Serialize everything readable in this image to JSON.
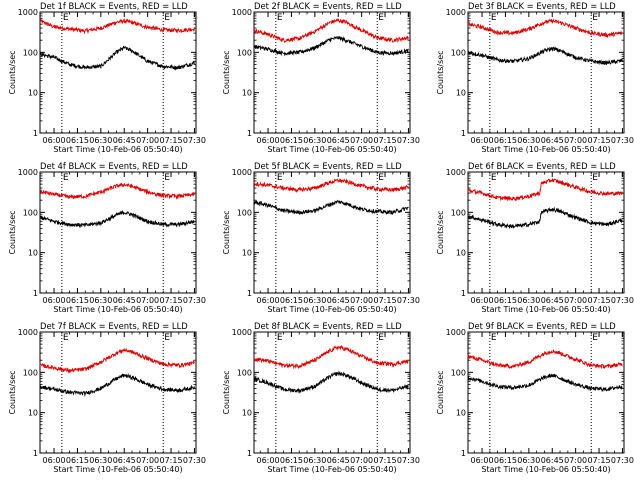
{
  "figure": {
    "ylabel": "Counts/sec",
    "xlabel": "Start Time (10-Feb-06 05:50:40)",
    "marker_labels": [
      "E",
      "E"
    ]
  },
  "colors": {
    "events": "#000000",
    "lld": "#dd0000",
    "axis": "#000000"
  },
  "chart_data": [
    {
      "type": "line",
      "title": "Det 1f BLACK = Events, RED = LLD",
      "xlabel": "Start Time (10-Feb-06 05:50:40)",
      "ylabel": "Counts/sec",
      "x": [
        "05:51",
        "06:00",
        "06:10",
        "06:20",
        "06:30",
        "06:40",
        "06:45",
        "06:50",
        "07:00",
        "07:10",
        "07:20",
        "07:30"
      ],
      "xtick_labels": [
        "06:00",
        "06:15",
        "06:30",
        "06:45",
        "07:00",
        "07:15",
        "07:30"
      ],
      "yscale": "log",
      "ylim": [
        1,
        1000
      ],
      "ytick_labels": [
        "1",
        "10",
        "100",
        "1000"
      ],
      "markers": [
        "06:05",
        "07:10"
      ],
      "series": [
        {
          "color": "red",
          "values": [
            600,
            430,
            380,
            340,
            400,
            560,
            600,
            550,
            420,
            360,
            350,
            380
          ]
        },
        {
          "color": "black",
          "values": [
            90,
            75,
            50,
            42,
            45,
            100,
            130,
            110,
            60,
            45,
            42,
            55
          ]
        }
      ]
    },
    {
      "type": "line",
      "title": "Det 2f BLACK = Events, RED = LLD",
      "xlabel": "Start Time (10-Feb-06 05:50:40)",
      "ylabel": "Counts/sec",
      "x": [
        "05:51",
        "06:00",
        "06:10",
        "06:20",
        "06:30",
        "06:40",
        "06:45",
        "06:50",
        "07:00",
        "07:10",
        "07:20",
        "07:30"
      ],
      "xtick_labels": [
        "06:00",
        "06:15",
        "06:30",
        "06:45",
        "07:00",
        "07:15",
        "07:30"
      ],
      "yscale": "log",
      "ylim": [
        1,
        1000
      ],
      "ytick_labels": [
        "1",
        "10",
        "100",
        "1000"
      ],
      "markers": [
        "06:05",
        "07:10"
      ],
      "series": [
        {
          "color": "red",
          "values": [
            350,
            280,
            200,
            220,
            330,
            560,
            620,
            560,
            350,
            230,
            200,
            230
          ]
        },
        {
          "color": "black",
          "values": [
            140,
            120,
            95,
            100,
            130,
            210,
            230,
            200,
            140,
            100,
            95,
            110
          ]
        }
      ]
    },
    {
      "type": "line",
      "title": "Det 3f BLACK = Events, RED = LLD",
      "xlabel": "Start Time (10-Feb-06 05:50:40)",
      "ylabel": "Counts/sec",
      "x": [
        "05:51",
        "06:00",
        "06:10",
        "06:20",
        "06:30",
        "06:40",
        "06:45",
        "06:50",
        "07:00",
        "07:10",
        "07:20",
        "07:30"
      ],
      "xtick_labels": [
        "06:00",
        "06:15",
        "06:30",
        "06:45",
        "07:00",
        "07:15",
        "07:30"
      ],
      "yscale": "log",
      "ylim": [
        1,
        1000
      ],
      "ytick_labels": [
        "1",
        "10",
        "100",
        "1000"
      ],
      "markers": [
        "06:05",
        "07:10"
      ],
      "series": [
        {
          "color": "red",
          "values": [
            500,
            420,
            310,
            300,
            380,
            560,
            600,
            550,
            400,
            300,
            270,
            300
          ]
        },
        {
          "color": "black",
          "values": [
            100,
            85,
            65,
            60,
            70,
            110,
            125,
            110,
            75,
            60,
            55,
            62
          ]
        }
      ]
    },
    {
      "type": "line",
      "title": "Det 4f BLACK = Events, RED = LLD",
      "xlabel": "Start Time (10-Feb-06 05:50:40)",
      "ylabel": "Counts/sec",
      "x": [
        "05:51",
        "06:00",
        "06:10",
        "06:20",
        "06:30",
        "06:40",
        "06:45",
        "06:50",
        "07:00",
        "07:10",
        "07:20",
        "07:30"
      ],
      "xtick_labels": [
        "06:00",
        "06:15",
        "06:30",
        "06:45",
        "07:00",
        "07:15",
        "07:30"
      ],
      "yscale": "log",
      "ylim": [
        1,
        1000
      ],
      "ytick_labels": [
        "1",
        "10",
        "100",
        "1000"
      ],
      "markers": [
        "06:05",
        "07:10"
      ],
      "series": [
        {
          "color": "red",
          "values": [
            330,
            280,
            240,
            250,
            320,
            450,
            490,
            440,
            320,
            260,
            250,
            280
          ]
        },
        {
          "color": "black",
          "values": [
            75,
            60,
            50,
            48,
            55,
            85,
            100,
            88,
            60,
            50,
            50,
            60
          ]
        }
      ]
    },
    {
      "type": "line",
      "title": "Det 5f BLACK = Events, RED = LLD",
      "xlabel": "Start Time (10-Feb-06 05:50:40)",
      "ylabel": "Counts/sec",
      "x": [
        "05:51",
        "06:00",
        "06:10",
        "06:20",
        "06:30",
        "06:40",
        "06:45",
        "06:50",
        "07:00",
        "07:10",
        "07:20",
        "07:30"
      ],
      "xtick_labels": [
        "06:00",
        "06:15",
        "06:30",
        "06:45",
        "07:00",
        "07:15",
        "07:30"
      ],
      "yscale": "log",
      "ylim": [
        1,
        1000
      ],
      "ytick_labels": [
        "1",
        "10",
        "100",
        "1000"
      ],
      "markers": [
        "06:05",
        "07:10"
      ],
      "series": [
        {
          "color": "red",
          "values": [
            520,
            470,
            400,
            360,
            400,
            560,
            620,
            580,
            450,
            380,
            360,
            420
          ]
        },
        {
          "color": "black",
          "values": [
            180,
            150,
            110,
            100,
            110,
            160,
            185,
            165,
            120,
            105,
            100,
            130
          ]
        }
      ]
    },
    {
      "type": "line",
      "title": "Det 6f BLACK = Events, RED = LLD",
      "xlabel": "Start Time (10-Feb-06 05:50:40)",
      "ylabel": "Counts/sec",
      "x": [
        "05:51",
        "06:00",
        "06:10",
        "06:20",
        "06:30",
        "06:37",
        "06:38",
        "06:45",
        "06:50",
        "07:00",
        "07:10",
        "07:20",
        "07:30"
      ],
      "xtick_labels": [
        "06:00",
        "06:15",
        "06:30",
        "06:45",
        "07:00",
        "07:15",
        "07:30"
      ],
      "yscale": "log",
      "ylim": [
        1,
        1000
      ],
      "ytick_labels": [
        "1",
        "10",
        "100",
        "1000"
      ],
      "markers": [
        "06:05",
        "07:10"
      ],
      "series": [
        {
          "color": "red",
          "values": [
            350,
            300,
            230,
            220,
            250,
            300,
            520,
            640,
            560,
            420,
            320,
            290,
            300
          ]
        },
        {
          "color": "black",
          "values": [
            80,
            65,
            50,
            45,
            50,
            60,
            100,
            120,
            105,
            75,
            55,
            50,
            65
          ]
        }
      ]
    },
    {
      "type": "line",
      "title": "Det 7f BLACK = Events, RED = LLD",
      "xlabel": "Start Time (10-Feb-06 05:50:40)",
      "ylabel": "Counts/sec",
      "x": [
        "05:51",
        "06:00",
        "06:10",
        "06:20",
        "06:30",
        "06:40",
        "06:45",
        "06:50",
        "07:00",
        "07:10",
        "07:20",
        "07:30"
      ],
      "xtick_labels": [
        "06:00",
        "06:15",
        "06:30",
        "06:45",
        "07:00",
        "07:15",
        "07:30"
      ],
      "yscale": "log",
      "ylim": [
        1,
        1000
      ],
      "ytick_labels": [
        "1",
        "10",
        "100",
        "1000"
      ],
      "markers": [
        "06:05",
        "07:10"
      ],
      "series": [
        {
          "color": "red",
          "values": [
            150,
            130,
            110,
            120,
            180,
            300,
            360,
            320,
            220,
            160,
            150,
            170
          ]
        },
        {
          "color": "black",
          "values": [
            45,
            38,
            32,
            30,
            40,
            70,
            85,
            75,
            50,
            38,
            36,
            42
          ]
        }
      ]
    },
    {
      "type": "line",
      "title": "Det 8f BLACK = Events, RED = LLD",
      "xlabel": "Start Time (10-Feb-06 05:50:40)",
      "ylabel": "Counts/sec",
      "x": [
        "05:51",
        "06:00",
        "06:10",
        "06:20",
        "06:30",
        "06:40",
        "06:45",
        "06:50",
        "07:00",
        "07:10",
        "07:20",
        "07:30"
      ],
      "xtick_labels": [
        "06:00",
        "06:15",
        "06:30",
        "06:45",
        "07:00",
        "07:15",
        "07:30"
      ],
      "yscale": "log",
      "ylim": [
        1,
        1000
      ],
      "ytick_labels": [
        "1",
        "10",
        "100",
        "1000"
      ],
      "markers": [
        "06:05",
        "07:10"
      ],
      "series": [
        {
          "color": "red",
          "values": [
            220,
            190,
            150,
            145,
            200,
            350,
            420,
            380,
            250,
            170,
            160,
            190
          ]
        },
        {
          "color": "black",
          "values": [
            70,
            55,
            38,
            35,
            45,
            80,
            95,
            85,
            55,
            38,
            36,
            45
          ]
        }
      ]
    },
    {
      "type": "line",
      "title": "Det 9f BLACK = Events, RED = LLD",
      "xlabel": "Start Time (10-Feb-06 05:50:40)",
      "ylabel": "Counts/sec",
      "x": [
        "05:51",
        "06:00",
        "06:10",
        "06:20",
        "06:30",
        "06:40",
        "06:45",
        "06:50",
        "07:00",
        "07:10",
        "07:20",
        "07:30"
      ],
      "xtick_labels": [
        "06:00",
        "06:15",
        "06:30",
        "06:45",
        "07:00",
        "07:15",
        "07:30"
      ],
      "yscale": "log",
      "ylim": [
        1,
        1000
      ],
      "ytick_labels": [
        "1",
        "10",
        "100",
        "1000"
      ],
      "markers": [
        "06:05",
        "07:10"
      ],
      "series": [
        {
          "color": "red",
          "values": [
            250,
            200,
            150,
            140,
            180,
            300,
            340,
            300,
            210,
            150,
            140,
            160
          ]
        },
        {
          "color": "black",
          "values": [
            75,
            60,
            45,
            42,
            48,
            75,
            85,
            72,
            50,
            40,
            38,
            45
          ]
        }
      ]
    }
  ]
}
